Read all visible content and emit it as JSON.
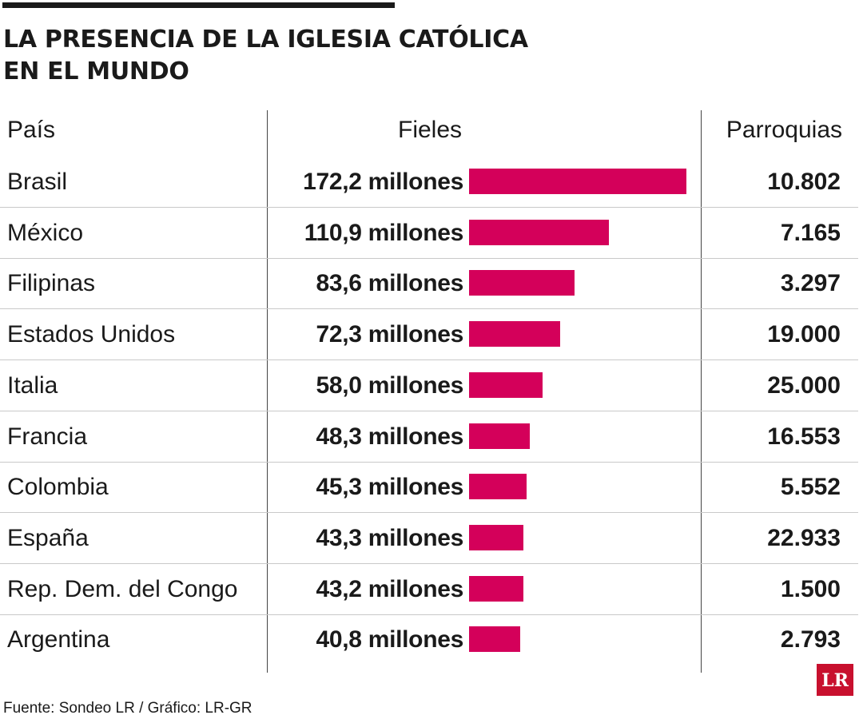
{
  "title": "LA PRESENCIA DE LA IGLESIA CATÓLICA EN EL MUNDO",
  "headers": {
    "country": "País",
    "fieles": "Fieles",
    "parroquias": "Parroquias"
  },
  "footer": "Fuente: Sondeo LR  / Gráfico: LR-GR",
  "logo_text": "LR",
  "colors": {
    "bar": "#d4005a",
    "logo": "#c8102e"
  },
  "chart_data": {
    "type": "bar",
    "title": "LA PRESENCIA DE LA IGLESIA CATÓLICA EN EL MUNDO",
    "xlabel": "",
    "ylabel": "Fieles",
    "categories": [
      "Brasil",
      "México",
      "Filipinas",
      "Estados Unidos",
      "Italia",
      "Francia",
      "Colombia",
      "España",
      "Rep. Dem. del Congo",
      "Argentina"
    ],
    "values": [
      172.2,
      110.9,
      83.6,
      72.3,
      58.0,
      48.3,
      45.3,
      43.3,
      43.2,
      40.8
    ],
    "value_labels": [
      "172,2 millones",
      "110,9 millones",
      "83,6 millones",
      "72,3 millones",
      "58,0 millones",
      "48,3 millones",
      "45,3 millones",
      "43,3 millones",
      "43,2 millones",
      "40,8 millones"
    ],
    "parroquias": [
      "10.802",
      "7.165",
      "3.297",
      "19.000",
      "25.000",
      "16.553",
      "5.552",
      "22.933",
      "1.500",
      "2.793"
    ]
  }
}
